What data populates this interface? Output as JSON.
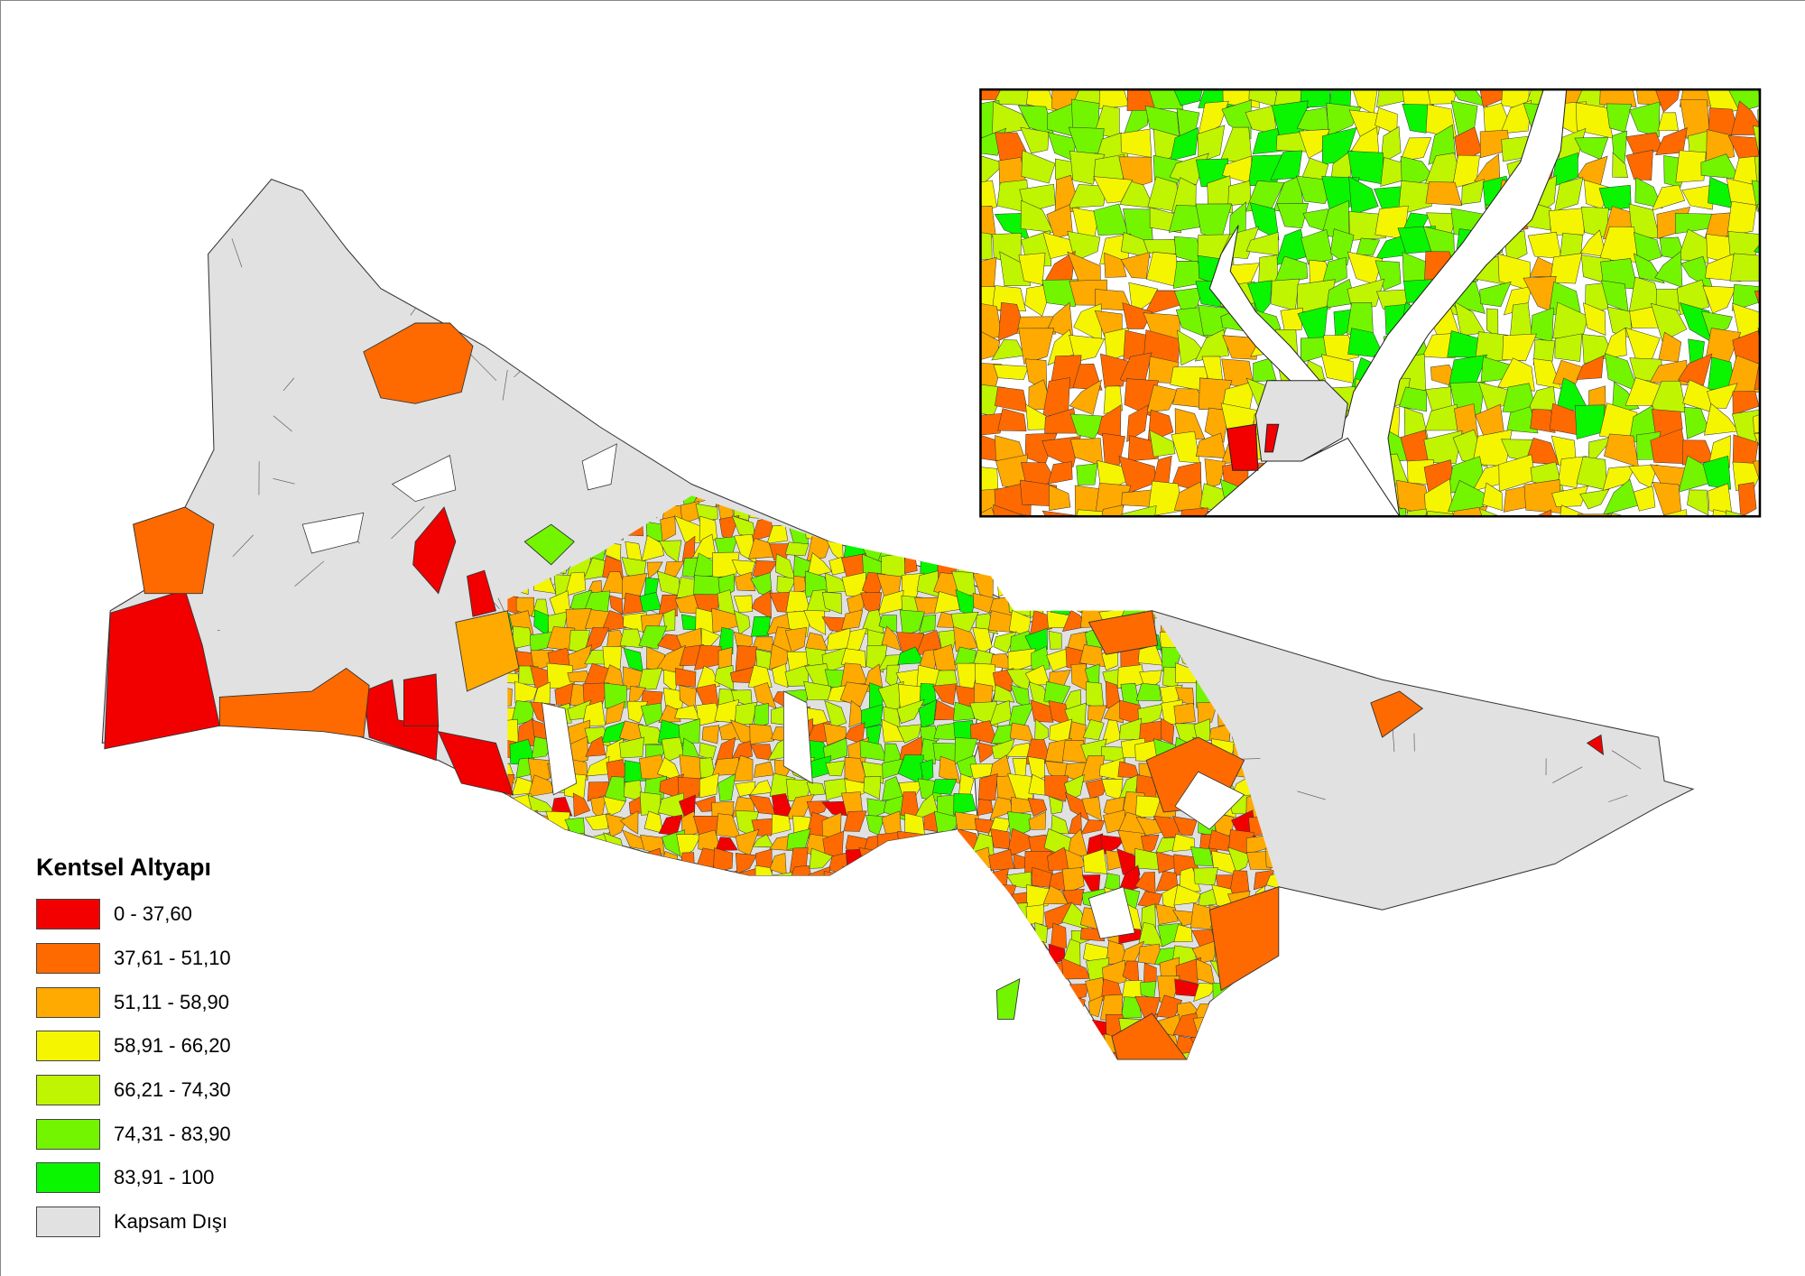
{
  "legend": {
    "title": "Kentsel Altyapı",
    "classes": [
      {
        "label": "0 - 37,60",
        "color": "#f20000"
      },
      {
        "label": "37,61 - 51,10",
        "color": "#ff6a00"
      },
      {
        "label": "51,11 - 58,90",
        "color": "#ffaa00"
      },
      {
        "label": "58,91 - 66,20",
        "color": "#f5f500"
      },
      {
        "label": "66,21 - 74,30",
        "color": "#bff500"
      },
      {
        "label": "74,31 - 83,90",
        "color": "#73f500"
      },
      {
        "label": "83,91 - 100",
        "color": "#0af500"
      },
      {
        "label": "Kapsam Dışı",
        "color": "#e1e1e1"
      }
    ]
  },
  "colors": {
    "water": "#ffffff",
    "boundary": "#333333"
  }
}
